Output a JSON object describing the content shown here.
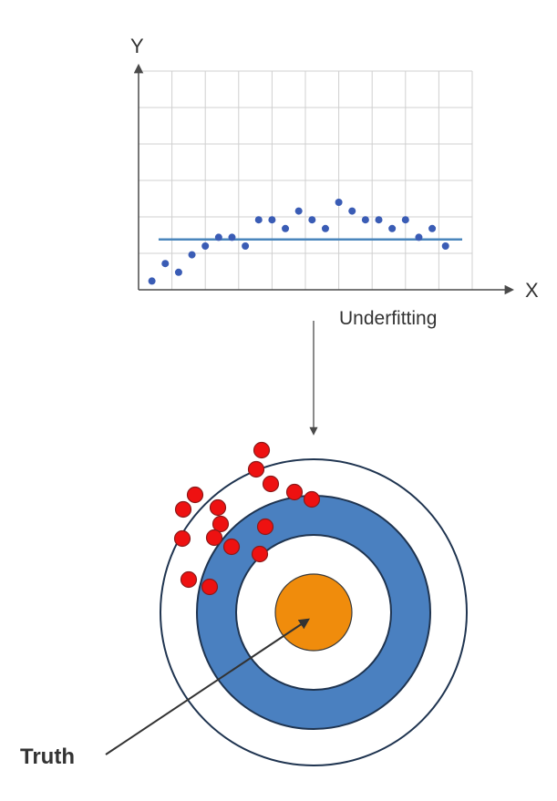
{
  "chart_data": {
    "type": "scatter",
    "xlabel": "X",
    "ylabel": "Y",
    "grid": true,
    "xlim": [
      0,
      10
    ],
    "ylim": [
      0,
      10
    ],
    "points": [
      {
        "x": 0.4,
        "y": 0.4
      },
      {
        "x": 0.8,
        "y": 1.2
      },
      {
        "x": 1.2,
        "y": 0.8
      },
      {
        "x": 1.6,
        "y": 1.6
      },
      {
        "x": 2.0,
        "y": 2.0
      },
      {
        "x": 2.4,
        "y": 2.4
      },
      {
        "x": 2.8,
        "y": 2.4
      },
      {
        "x": 3.2,
        "y": 2.0
      },
      {
        "x": 3.6,
        "y": 3.2
      },
      {
        "x": 4.0,
        "y": 3.2
      },
      {
        "x": 4.4,
        "y": 2.8
      },
      {
        "x": 4.8,
        "y": 3.6
      },
      {
        "x": 5.2,
        "y": 3.2
      },
      {
        "x": 5.6,
        "y": 2.8
      },
      {
        "x": 6.0,
        "y": 4.0
      },
      {
        "x": 6.4,
        "y": 3.6
      },
      {
        "x": 6.8,
        "y": 3.2
      },
      {
        "x": 7.2,
        "y": 3.2
      },
      {
        "x": 7.6,
        "y": 2.8
      },
      {
        "x": 8.0,
        "y": 3.2
      },
      {
        "x": 8.4,
        "y": 2.4
      },
      {
        "x": 8.8,
        "y": 2.8
      },
      {
        "x": 9.2,
        "y": 2.0
      }
    ],
    "fit_line": {
      "type": "constant",
      "y": 2.3,
      "x_range": [
        0.6,
        9.7
      ]
    },
    "colors": {
      "points": "#3a5cb5",
      "fit_line": "#4a86bc",
      "grid": "#d0d0d0",
      "axis": "#4a4a4a"
    }
  },
  "labels": {
    "caption": "Underfitting",
    "truth": "Truth"
  },
  "target": {
    "colors": {
      "outer_ring": "#ffffff",
      "blue_ring": "#4a80c0",
      "inner_ring": "#ffffff",
      "bullseye": "#f08c0c",
      "ring_stroke": "#1f3450",
      "shots": "#ee1111",
      "shot_stroke": "#8a1a1a"
    },
    "shot_count": 17
  }
}
